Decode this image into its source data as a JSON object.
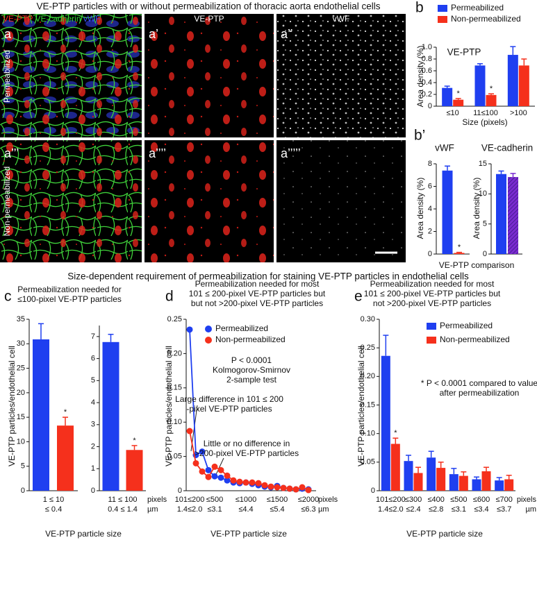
{
  "figure": {
    "title": "VE-PTP particles with or without permeabilization of thoracic aorta endothelial cells",
    "section_title": "Size-dependent requirement of permeabilization for staining VE-PTP particles in endothelial cells",
    "stain_labels": [
      {
        "text": "VE-PTP",
        "color": "#ff2a20"
      },
      {
        "text": "VE-cadherin",
        "color": "#33d633"
      },
      {
        "text": "vWF",
        "color": "#3a55ff"
      }
    ],
    "column_headers": [
      {
        "text": "VE-PTP",
        "color": "#ff2a20"
      },
      {
        "text": "vWF",
        "color": "#ffffff"
      }
    ],
    "row_labels": [
      "Permeabilized",
      "Non-permeabilized"
    ],
    "image_labels": [
      "a",
      "a’",
      "a’’",
      "a’’’",
      "a’’’’",
      "a’’’’’"
    ]
  },
  "chart_data": [
    {
      "type": "bar",
      "panel": "b",
      "title": "VE-PTP",
      "title_color": "#e8261c",
      "ylabel": "Area density (%)",
      "xlabel": "Size (pixels)",
      "categories": [
        "≤10",
        "11≤100",
        ">100"
      ],
      "ylim": [
        0,
        1.0
      ],
      "yticks": [
        0,
        0.2,
        0.4,
        0.6,
        0.8,
        {
          "value": 1,
          "label": "1.0"
        }
      ],
      "series": [
        {
          "name": "Permeabilized",
          "color": "#1f3ff0",
          "values": [
            0.31,
            0.69,
            0.87
          ],
          "errors": [
            0.03,
            0.03,
            0.14
          ]
        },
        {
          "name": "Non-permeabilized",
          "color": "#f5301c",
          "values": [
            0.11,
            0.19,
            0.69
          ],
          "errors": [
            0.02,
            0.02,
            0.11
          ],
          "significance": [
            "*",
            "*",
            null
          ]
        }
      ]
    },
    {
      "type": "bar",
      "panel": "b’",
      "title": "vWF",
      "title_color": "#2a3fe0",
      "ylabel": "Area density (%)",
      "xlabel": "VE-PTP comparison",
      "categories": [
        null
      ],
      "ylim": [
        0,
        8
      ],
      "yticks": [
        0,
        2,
        4,
        6,
        8
      ],
      "series": [
        {
          "color": "#1f3ff0",
          "values": [
            7.4
          ],
          "errors": [
            0.4
          ]
        },
        {
          "color": "#f5301c",
          "values": [
            0.1
          ],
          "errors": [
            0.05
          ],
          "significance": [
            "*"
          ]
        }
      ]
    },
    {
      "type": "bar",
      "title": "VE-cadherin",
      "title_color": "#22b022",
      "ylabel": "Area density (%)",
      "categories": [
        null
      ],
      "ylim": [
        0,
        15
      ],
      "yticks": [
        0,
        5,
        10,
        15
      ],
      "series": [
        {
          "color": "#1f3ff0",
          "values": [
            13.3
          ],
          "errors": [
            0.5
          ]
        },
        {
          "color": "#7a2bd0",
          "pattern": "hatch",
          "values": [
            12.8
          ],
          "errors": [
            0.6
          ]
        }
      ]
    },
    {
      "type": "bar",
      "panel": "c",
      "title": [
        "Permeabilization needed for",
        "≤100-pixel VE-PTP particles"
      ],
      "ylabel": "VE-PTP particles/endothelial cell",
      "xlabel": "VE-PTP particle size",
      "categories": [
        "1 ≤ 10"
      ],
      "categories_um": [
        "≤ 0.4"
      ],
      "ylim": [
        0,
        35
      ],
      "yticks": [
        0,
        5,
        10,
        15,
        20,
        25,
        30,
        35
      ],
      "series": [
        {
          "color": "#1f3ff0",
          "values": [
            30.9
          ],
          "errors": [
            3.2
          ]
        },
        {
          "color": "#f5301c",
          "values": [
            13.3
          ],
          "errors": [
            1.7
          ],
          "significance": [
            "*"
          ]
        }
      ]
    },
    {
      "type": "bar",
      "categories": [
        "11 ≤ 100"
      ],
      "categories_um": [
        "0.4 ≤ 1.4"
      ],
      "x_units": [
        "pixels",
        "µm"
      ],
      "ylim": [
        0,
        7.5
      ],
      "yticks": [
        0,
        1,
        2,
        3,
        4,
        5,
        6,
        7
      ],
      "series": [
        {
          "color": "#1f3ff0",
          "values": [
            6.75
          ],
          "errors": [
            0.35
          ]
        },
        {
          "color": "#f5301c",
          "values": [
            1.85
          ],
          "errors": [
            0.2
          ],
          "significance": [
            "*"
          ]
        }
      ]
    },
    {
      "type": "line",
      "panel": "d",
      "title": [
        "Permeabilization needed for most",
        "101 ≤ 200-pixel VE-PTP particles but",
        "but not >200-pixel VE-PTP particles"
      ],
      "ylabel": "VE-PTP particles/endothelial cell",
      "xlabel": "VE-PTP particle size",
      "categories": [
        "101≤200",
        null,
        null,
        null,
        "≤500",
        null,
        null,
        null,
        null,
        "≤1000",
        null,
        null,
        null,
        null,
        "≤1500",
        null,
        null,
        null,
        null,
        "≤2000"
      ],
      "categories_um": [
        "1.4≤2.0",
        null,
        null,
        null,
        "≤3.1",
        null,
        null,
        null,
        null,
        "≤4.4",
        null,
        null,
        null,
        null,
        "≤5.4",
        null,
        null,
        null,
        null,
        "≤6.3"
      ],
      "x_units": [
        "pixels",
        "µm"
      ],
      "ylim": [
        0,
        0.25
      ],
      "yticks": [
        0,
        0.05,
        {
          "value": 0.1,
          "label": "0.10"
        },
        0.15,
        {
          "value": 0.2,
          "label": "0.20"
        },
        0.25
      ],
      "series": [
        {
          "name": "Permeabilized",
          "color": "#1f3ff0",
          "values": [
            0.235,
            0.052,
            0.057,
            0.03,
            0.021,
            0.019,
            0.015,
            0.012,
            0.011,
            0.012,
            0.01,
            0.008,
            0.006,
            0.005,
            0.007,
            0.004,
            0.003,
            0.002,
            0.003,
            0.002
          ]
        },
        {
          "name": "Non-permeabilized",
          "color": "#f5301c",
          "values": [
            0.087,
            0.04,
            0.028,
            0.02,
            0.035,
            0.03,
            0.022,
            0.015,
            0.013,
            0.012,
            0.012,
            0.011,
            0.008,
            0.006,
            0.005,
            0.004,
            0.003,
            0.002,
            0.005,
            0.001
          ]
        }
      ],
      "annotations": [
        [
          "P < 0.0001",
          "Kolmogorov-Smirnov",
          "2-sample test"
        ],
        [
          "Large difference in 101 ≤ 200",
          "-pixel VE-PTP particles"
        ],
        [
          "Little or no difference in",
          ">200-pixel VE-PTP particles"
        ]
      ]
    },
    {
      "type": "bar",
      "panel": "e",
      "title": [
        "Permeabilization needed for most",
        "101 ≤ 200-pixel VE-PTP particles but",
        "not  >200-pixel VE-PTP particles"
      ],
      "ylabel": "VE-PTP particles/endothelial cell",
      "xlabel": "VE-PTP particle size",
      "categories": [
        "101≤200",
        "≤300",
        "≤400",
        "≤500",
        "≤600",
        "≤700"
      ],
      "categories_um": [
        "1.4≤2.0",
        "≤2.4",
        "≤2.8",
        "≤3.1",
        "≤3.4",
        "≤3.7"
      ],
      "x_units": [
        "pixels",
        "µm"
      ],
      "ylim": [
        0,
        0.3
      ],
      "yticks": [
        0,
        0.05,
        {
          "value": 0.1,
          "label": "0.10"
        },
        0.15,
        {
          "value": 0.2,
          "label": "0.20"
        },
        0.25,
        {
          "value": 0.3,
          "label": "0.30"
        }
      ],
      "series": [
        {
          "name": "Permeabilized",
          "color": "#1f3ff0",
          "values": [
            0.236,
            0.052,
            0.058,
            0.029,
            0.02,
            0.018
          ],
          "errors": [
            0.036,
            0.01,
            0.011,
            0.01,
            0.004,
            0.005
          ]
        },
        {
          "name": "Non-permeabilized",
          "color": "#f5301c",
          "values": [
            0.082,
            0.031,
            0.04,
            0.026,
            0.034,
            0.02
          ],
          "errors": [
            0.01,
            0.01,
            0.01,
            0.007,
            0.007,
            0.007
          ],
          "significance": [
            "*",
            null,
            null,
            null,
            null,
            null
          ]
        }
      ],
      "annotations": [
        [
          "* P < 0.0001 compared to value",
          "after permeabilization"
        ]
      ]
    }
  ]
}
